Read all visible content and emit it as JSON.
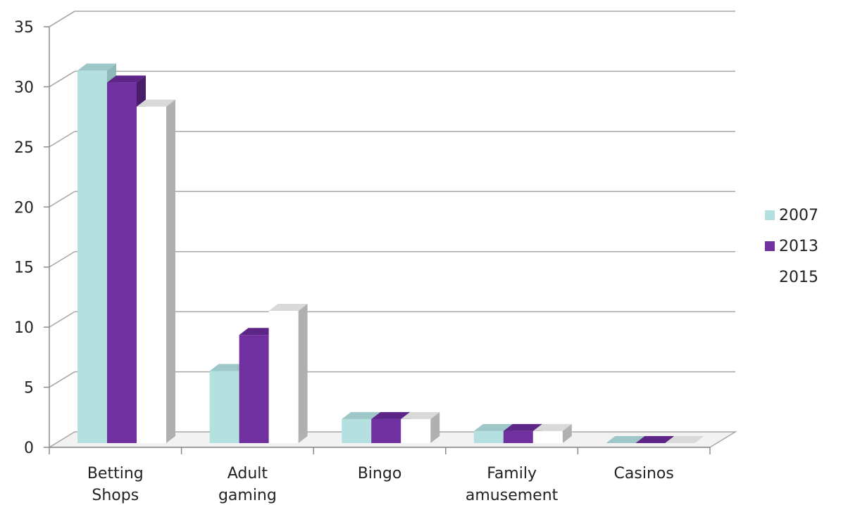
{
  "chart_data": {
    "type": "bar",
    "title": "",
    "xlabel": "",
    "ylabel": "",
    "categories": [
      [
        "Betting",
        "Shops"
      ],
      [
        "Adult",
        "gaming"
      ],
      [
        "Bingo"
      ],
      [
        "Family",
        "amusement"
      ],
      [
        "Casinos"
      ]
    ],
    "ylim": [
      0,
      35
    ],
    "yticks": [
      "0",
      "5",
      "10",
      "15",
      "20",
      "25",
      "30",
      "35"
    ],
    "grid": true,
    "legend_position": "right",
    "series": [
      {
        "name": "2007",
        "color": "#b4e0e0",
        "values": [
          31,
          6,
          2,
          1,
          0
        ]
      },
      {
        "name": "2013",
        "color": "#7030a0",
        "values": [
          30,
          9,
          2,
          1,
          0
        ]
      },
      {
        "name": "2015",
        "color": "#ffffff",
        "values": [
          28,
          11,
          2,
          1,
          0
        ]
      }
    ]
  }
}
